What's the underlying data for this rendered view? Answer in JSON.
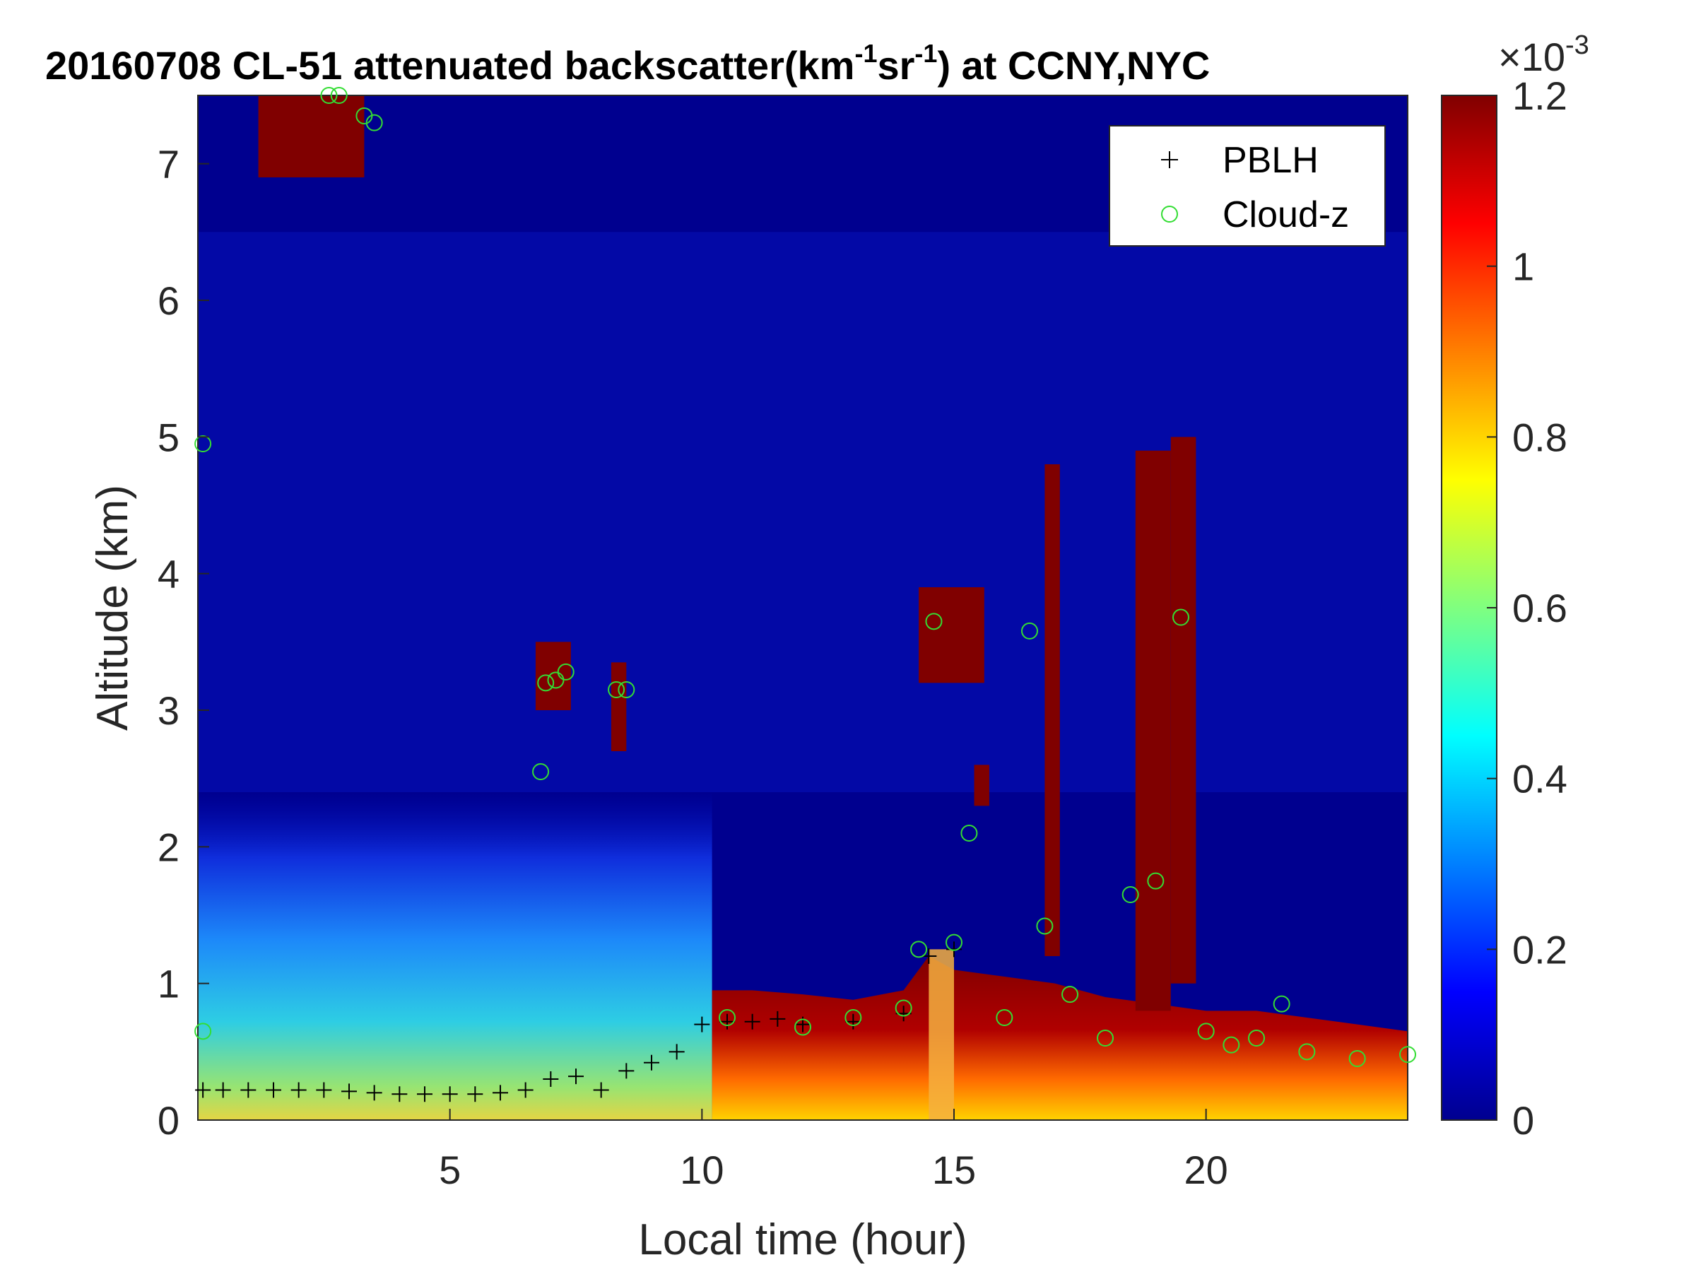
{
  "chart_data": {
    "type": "heatmap",
    "title_parts": [
      "20160708  CL-51 attenuated backscatter(km",
      "-1",
      "sr",
      "-1",
      ") at CCNY,NYC"
    ],
    "xlabel": "Local time (hour)",
    "ylabel": "Altitude (km)",
    "xlim": [
      0,
      24
    ],
    "ylim": [
      0,
      7.5
    ],
    "xticks": [
      5,
      10,
      15,
      20
    ],
    "xtick_labels": [
      "5",
      "10",
      "15",
      "20"
    ],
    "yticks": [
      0,
      1,
      2,
      3,
      4,
      5,
      6,
      7
    ],
    "ytick_labels": [
      "0",
      "1",
      "2",
      "3",
      "4",
      "5",
      "6",
      "7"
    ],
    "colorbar": {
      "colormap": "jet",
      "range": [
        0,
        1.2
      ],
      "scale_label": "×10",
      "scale_exponent": "-3",
      "ticks": [
        0,
        0.2,
        0.4,
        0.6,
        0.8,
        1,
        1.2
      ],
      "tick_labels": [
        "0",
        "0.2",
        "0.4",
        "0.6",
        "0.8",
        "1",
        "1.2"
      ]
    },
    "legend": {
      "placement": "top-right",
      "entries": [
        {
          "label": "PBLH",
          "marker": "+",
          "color": "#000000"
        },
        {
          "label": "Cloud-z",
          "marker": "o",
          "color": "#33dd33"
        }
      ]
    },
    "pblh": {
      "name": "PBLH",
      "x": [
        0.1,
        0.5,
        1,
        1.5,
        2,
        2.5,
        3,
        3.5,
        4,
        4.5,
        5,
        5.5,
        6,
        6.5,
        7,
        7.5,
        8,
        8.5,
        9,
        9.5,
        10,
        10.5,
        11,
        11.5,
        12,
        13,
        14,
        14.5,
        15
      ],
      "y": [
        0.22,
        0.22,
        0.22,
        0.22,
        0.22,
        0.22,
        0.21,
        0.2,
        0.19,
        0.19,
        0.19,
        0.19,
        0.2,
        0.22,
        0.3,
        0.32,
        0.22,
        0.36,
        0.42,
        0.5,
        0.7,
        0.72,
        0.72,
        0.74,
        0.7,
        0.72,
        0.78,
        1.2,
        1.25
      ]
    },
    "cloud_z": {
      "name": "Cloud-z",
      "x": [
        0.1,
        0.1,
        2.6,
        2.8,
        3.3,
        3.5,
        6.8,
        6.9,
        7.1,
        7.3,
        8.3,
        8.5,
        10.5,
        12,
        13,
        14,
        14.3,
        14.6,
        15,
        15.3,
        16,
        16.5,
        16.8,
        17.3,
        18,
        18.5,
        19,
        19.5,
        20,
        20.5,
        21,
        21.5,
        22,
        23,
        24
      ],
      "y": [
        4.95,
        0.65,
        7.5,
        7.5,
        7.35,
        7.3,
        2.55,
        3.2,
        3.22,
        3.28,
        3.15,
        3.15,
        0.75,
        0.68,
        0.75,
        0.82,
        1.25,
        3.65,
        1.3,
        2.1,
        0.75,
        3.58,
        1.42,
        0.92,
        0.6,
        1.65,
        1.75,
        3.68,
        0.65,
        0.55,
        0.6,
        0.85,
        0.5,
        0.45,
        0.48
      ]
    },
    "cloud_features": [
      {
        "x0": 1.2,
        "x1": 3.3,
        "y0": 6.9,
        "y1": 7.5,
        "value": 1.2
      },
      {
        "x0": 6.7,
        "x1": 7.4,
        "y0": 3.0,
        "y1": 3.5,
        "value": 1.2
      },
      {
        "x0": 8.2,
        "x1": 8.5,
        "y0": 2.7,
        "y1": 3.35,
        "value": 1.2
      },
      {
        "x0": 14.3,
        "x1": 15.6,
        "y0": 3.2,
        "y1": 3.9,
        "value": 1.2
      },
      {
        "x0": 15.4,
        "x1": 15.7,
        "y0": 2.3,
        "y1": 2.6,
        "value": 1.2
      },
      {
        "x0": 16.8,
        "x1": 17.1,
        "y0": 1.2,
        "y1": 4.8,
        "value": 1.2
      },
      {
        "x0": 18.6,
        "x1": 19.3,
        "y0": 0.8,
        "y1": 4.9,
        "value": 1.2
      },
      {
        "x0": 19.3,
        "x1": 19.8,
        "y0": 1.0,
        "y1": 5.0,
        "value": 1.2
      }
    ],
    "boundary_layer_top": {
      "x": [
        10.2,
        11,
        12,
        13,
        14,
        14.5,
        15,
        16,
        17,
        18,
        19,
        20,
        21,
        22,
        23,
        24
      ],
      "y": [
        0.95,
        0.95,
        0.92,
        0.88,
        0.95,
        1.2,
        1.1,
        1.05,
        1.0,
        0.9,
        0.85,
        0.8,
        0.8,
        0.75,
        0.7,
        0.65
      ]
    }
  }
}
